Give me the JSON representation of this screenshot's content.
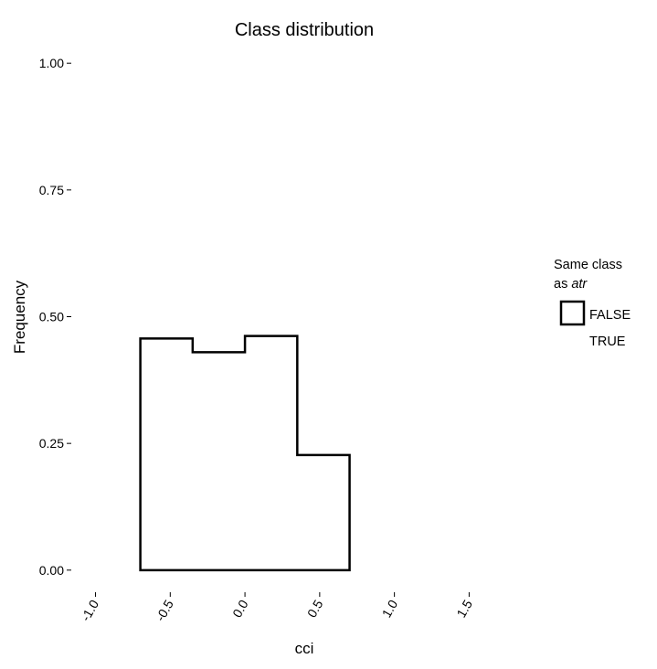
{
  "chart_data": {
    "type": "bar",
    "title": "Class distribution",
    "xlabel": "cci",
    "ylabel": "Frequency",
    "xlim": [
      -1.15,
      1.95
    ],
    "ylim": [
      -0.04,
      1.04
    ],
    "x_ticks": [
      "-1.0",
      "-0.5",
      "0.0",
      "0.5",
      "1.0",
      "1.5"
    ],
    "y_ticks": [
      "0.00",
      "0.25",
      "0.50",
      "0.75",
      "1.00"
    ],
    "grid": false,
    "legend_position": "right",
    "legend_title_line1": "Same class",
    "legend_title_line2_prefix": "as ",
    "legend_title_line2_italic": "atr",
    "series": [
      {
        "name": "FALSE",
        "bins": [
          {
            "x0": -0.7,
            "x1": -0.35,
            "value": 0.457
          },
          {
            "x0": -0.35,
            "x1": 0.0,
            "value": 0.43
          },
          {
            "x0": 0.0,
            "x1": 0.35,
            "value": 0.462
          },
          {
            "x0": 0.35,
            "x1": 0.7,
            "value": 0.227
          }
        ]
      },
      {
        "name": "TRUE",
        "bins": []
      }
    ]
  }
}
